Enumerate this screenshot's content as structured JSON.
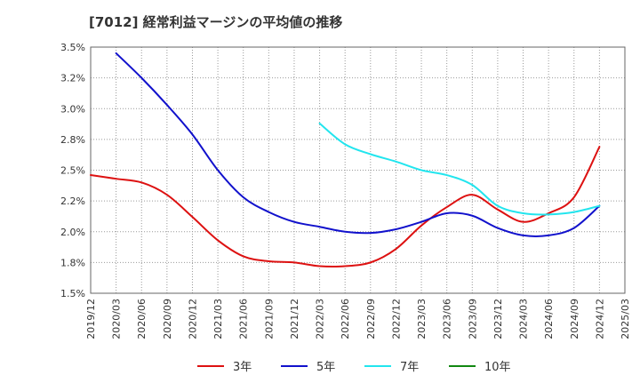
{
  "chart_data": {
    "type": "line",
    "title": "[7012]  経常利益マージンの平均値の推移",
    "xlabel": "",
    "ylabel": "",
    "ylim": [
      1.5,
      3.5
    ],
    "y_ticks": [
      "1.5%",
      "1.8%",
      "2.0%",
      "2.2%",
      "2.5%",
      "2.8%",
      "3.0%",
      "3.2%",
      "3.5%"
    ],
    "y_tick_values": [
      1.5,
      1.75,
      2.0,
      2.25,
      2.5,
      2.75,
      3.0,
      3.25,
      3.5
    ],
    "x_ticks": [
      "2019/12",
      "2020/03",
      "2020/06",
      "2020/09",
      "2020/12",
      "2021/03",
      "2021/06",
      "2021/09",
      "2021/12",
      "2022/03",
      "2022/06",
      "2022/09",
      "2022/12",
      "2023/03",
      "2023/06",
      "2023/09",
      "2023/12",
      "2024/03",
      "2024/06",
      "2024/09",
      "2024/12",
      "2025/03"
    ],
    "grid": true,
    "legend_position": "bottom",
    "series": [
      {
        "name": "3年",
        "color": "#dd1111",
        "x": [
          "2019/12",
          "2020/03",
          "2020/06",
          "2020/09",
          "2020/12",
          "2021/03",
          "2021/06",
          "2021/09",
          "2021/12",
          "2022/03",
          "2022/06",
          "2022/09",
          "2022/12",
          "2023/03",
          "2023/06",
          "2023/09",
          "2023/12",
          "2024/03",
          "2024/06",
          "2024/09",
          "2024/12"
        ],
        "values": [
          2.46,
          2.43,
          2.4,
          2.3,
          2.12,
          1.93,
          1.8,
          1.76,
          1.75,
          1.72,
          1.72,
          1.75,
          1.86,
          2.05,
          2.2,
          2.3,
          2.18,
          2.08,
          2.15,
          2.28,
          2.69
        ]
      },
      {
        "name": "5年",
        "color": "#1111cc",
        "x": [
          "2020/03",
          "2020/06",
          "2020/09",
          "2020/12",
          "2021/03",
          "2021/06",
          "2021/09",
          "2021/12",
          "2022/03",
          "2022/06",
          "2022/09",
          "2022/12",
          "2023/03",
          "2023/06",
          "2023/09",
          "2023/12",
          "2024/03",
          "2024/06",
          "2024/09",
          "2024/12"
        ],
        "values": [
          3.45,
          3.25,
          3.03,
          2.79,
          2.5,
          2.28,
          2.16,
          2.08,
          2.04,
          2.0,
          1.99,
          2.02,
          2.08,
          2.15,
          2.13,
          2.03,
          1.97,
          1.97,
          2.03,
          2.21
        ]
      },
      {
        "name": "7年",
        "color": "#22e5ee",
        "x": [
          "2022/03",
          "2022/06",
          "2022/09",
          "2022/12",
          "2023/03",
          "2023/06",
          "2023/09",
          "2023/12",
          "2024/03",
          "2024/06",
          "2024/09",
          "2024/12"
        ],
        "values": [
          2.88,
          2.71,
          2.63,
          2.57,
          2.5,
          2.46,
          2.38,
          2.21,
          2.15,
          2.14,
          2.16,
          2.21
        ]
      },
      {
        "name": "10年",
        "color": "#118811",
        "x": [],
        "values": []
      }
    ]
  }
}
